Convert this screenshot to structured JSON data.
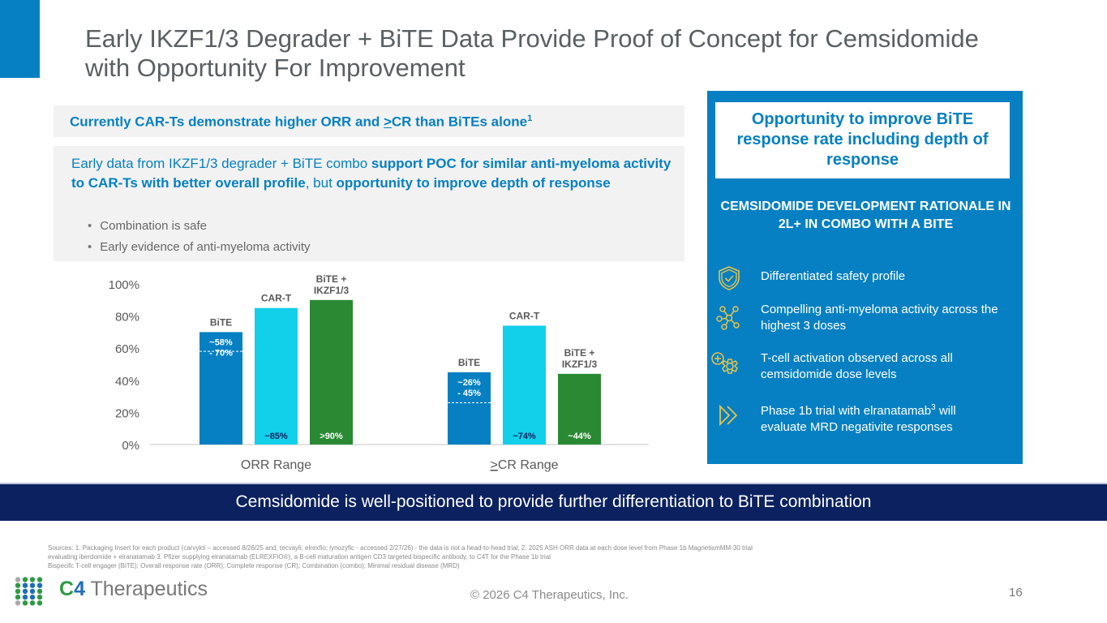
{
  "slide": {
    "title_line1": "Early IKZF1/3 Degrader + BiTE Data Provide Proof of Concept for Cemsidomide",
    "title_line2": "with Opportunity For Improvement",
    "page_number": "16",
    "copyright": "© 2026 C4 Therapeutics, Inc."
  },
  "callout": {
    "text_before": "Currently CAR-Ts demonstrate higher ORR and ",
    "text_underlined": ">",
    "text_after": "CR than BiTEs alone",
    "footnote": "1"
  },
  "summary": {
    "p1": "Early data from IKZF1/3 degrader + BiTE combo ",
    "p1_bold": "support POC for similar anti-myeloma activity to CAR-Ts with better overall profile",
    "p2": ", but ",
    "p2_bold": "opportunity to improve depth of response",
    "bullets": [
      "Combination is safe",
      "Early evidence of anti-myeloma activity"
    ]
  },
  "side_panel": {
    "box_text": "Opportunity to improve BiTE response rate including depth of response",
    "heading": "CEMSIDOMIDE DEVELOPMENT RATIONALE IN 2L+ IN COMBO WITH A BITE",
    "items": [
      {
        "icon": "shield-check-icon",
        "label": "Differentiated safety profile",
        "sup": ""
      },
      {
        "icon": "network-nodes-icon",
        "label": "Compelling anti-myeloma activity across the highest 3 doses",
        "sup": ""
      },
      {
        "icon": "gear-plus-icon",
        "label": "T-cell activation observed across all cemsidomide dose levels",
        "sup": ""
      },
      {
        "icon": "fast-forward-icon",
        "label_a": "Phase 1b trial with elranatamab",
        "sup": "3",
        "label_b": "will evaluate MRD negativite responses"
      }
    ]
  },
  "banner": {
    "text": "Cemsidomide is well-positioned to provide further differentiation to BiTE combination"
  },
  "sources": {
    "line1": "Sources: 1. Packaging Insert for each product (carvykti – accessed 8/26/25 and, tecvayli; elrexfio; lynozyfic - accessed 2/27/26) - the  data is not a head-to-head trial; 2. 2025 ASH ORR data at each dose level from Phase 1b MagnetismMM-30 trial",
    "line2": "evaluating iberdomide + elranatamab 3. Pfizer supplying elranatamab (ELREXFIO®), a B-cell maturation antigen CD3 targeted bispecific antibody, to C4T for the Phase 1b trial",
    "line3": "Bispecifc T-cell engager (BiTE); Overall response rate (ORR); Complete response (CR); Combination (combo); Minimal residual disease (MRD)"
  },
  "logo": {
    "brand_c": "C",
    "brand_4": "4",
    "brand_rest": " Therapeutics"
  },
  "colors": {
    "primary_blue": "#0680c2",
    "cyan": "#12cfea",
    "green": "#2a8a34",
    "navy": "#0b2160",
    "gold_icon": "#e6c44a"
  },
  "chart_data": {
    "type": "bar",
    "categories": [
      "ORR Range",
      "≥CR Range"
    ],
    "ylim": [
      0,
      100
    ],
    "yticks": [
      "0%",
      "20%",
      "40%",
      "60%",
      "80%",
      "100%"
    ],
    "xlabel": "",
    "ylabel": "",
    "grid": false,
    "series": [
      {
        "name": "BiTE",
        "label": "BiTE",
        "color": "#0680c2",
        "values": [
          70,
          45
        ],
        "range_low": [
          58,
          26
        ],
        "data_labels": [
          "~58%\n- 70%",
          "~26%\n- 45%"
        ]
      },
      {
        "name": "CAR-T",
        "label": "CAR-T",
        "color": "#12cfea",
        "values": [
          85,
          74
        ],
        "data_labels": [
          "~85%",
          "~74%"
        ]
      },
      {
        "name": "BiTE + IKZF1/3",
        "label": "BiTE +\nIKZF1/3",
        "color": "#2a8a34",
        "values": [
          90,
          44
        ],
        "data_labels": [
          ">90%",
          "~44%"
        ]
      }
    ]
  }
}
